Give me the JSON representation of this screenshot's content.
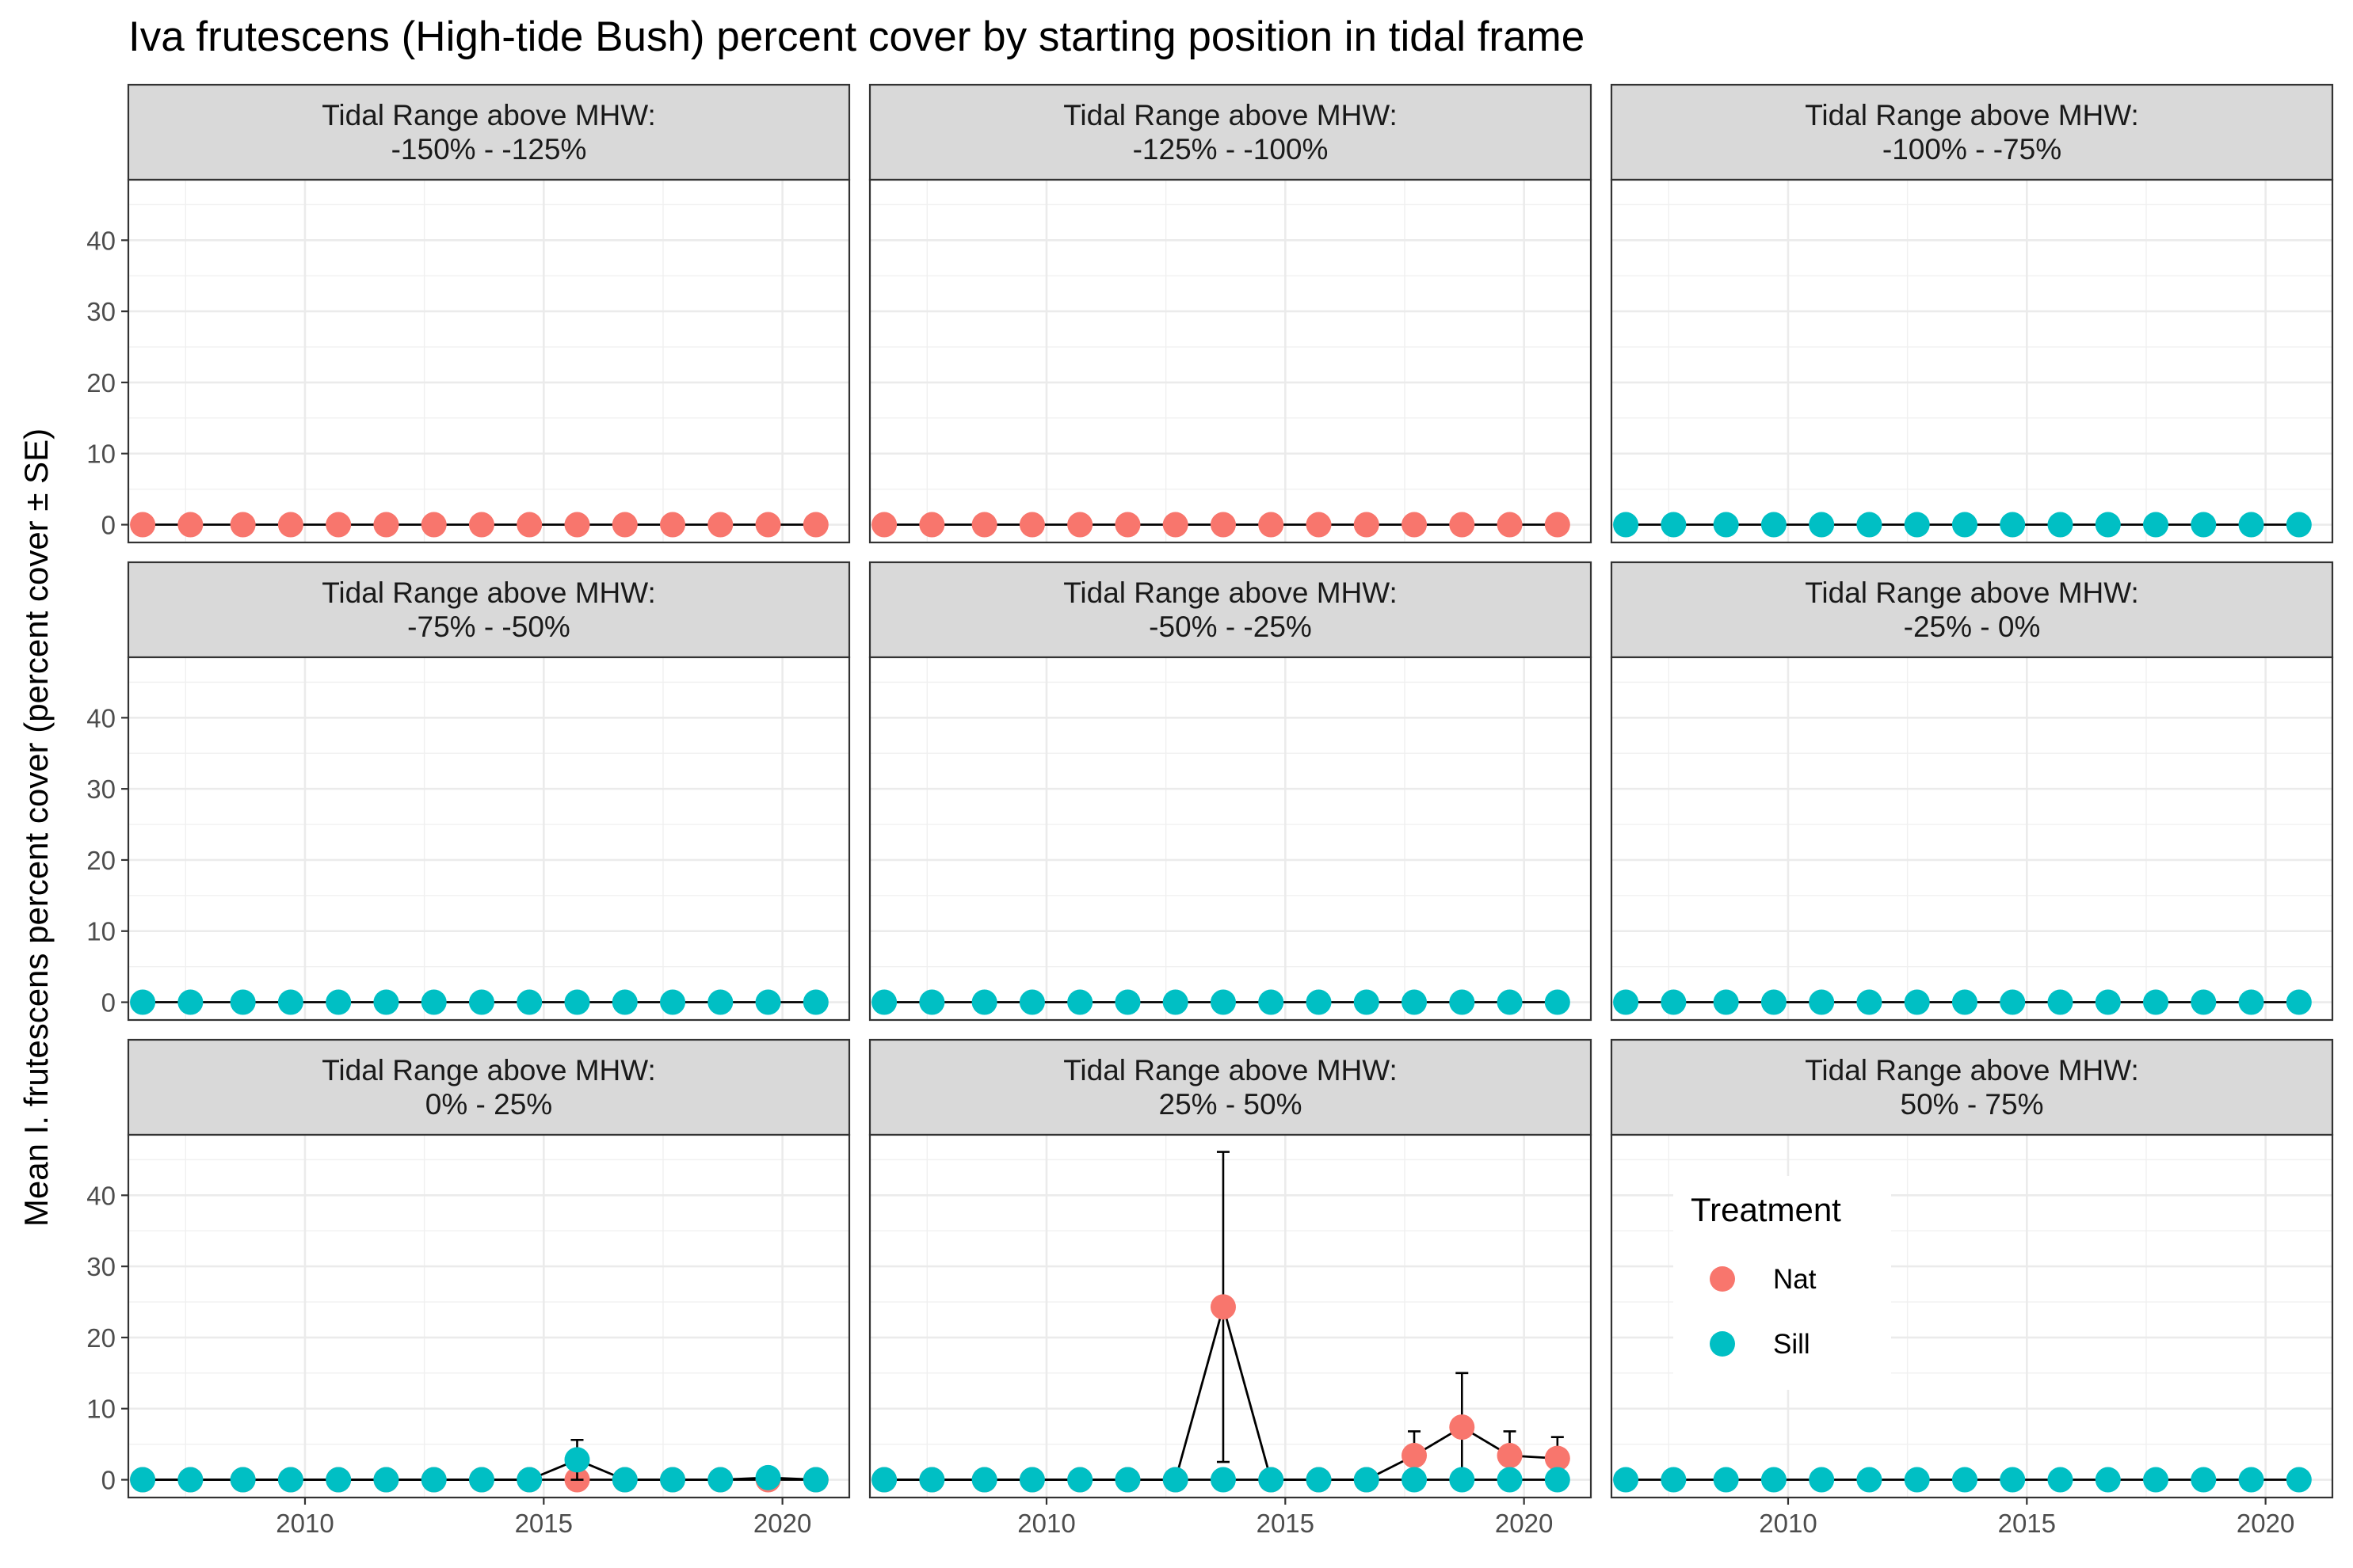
{
  "chart_data": {
    "type": "line",
    "title": "Iva frutescens (High-tide Bush) percent cover by starting position in tidal frame",
    "ylabel": "Mean I. frutescens percent cover (percent cover ± SE)",
    "xlabel": "",
    "xlim": [
      2006.3,
      2021.4
    ],
    "ylim": [
      -2.5,
      48.5
    ],
    "x_ticks": [
      2010,
      2015,
      2020
    ],
    "y_ticks": [
      0,
      10,
      20,
      30,
      40
    ],
    "grid": true,
    "legend": {
      "title": "Treatment",
      "position": "inside bottom-right panel",
      "entries": [
        {
          "name": "Nat",
          "color": "#F8766D"
        },
        {
          "name": "Sill",
          "color": "#00BFC4"
        }
      ]
    },
    "series_colors": {
      "Nat": "#F8766D",
      "Sill": "#00BFC4"
    },
    "years": [
      2006.6,
      2007.6,
      2008.7,
      2009.7,
      2010.7,
      2011.7,
      2012.7,
      2013.7,
      2014.7,
      2015.7,
      2016.7,
      2017.7,
      2018.7,
      2019.7,
      2020.7
    ],
    "facets": [
      {
        "strip_line1": "Tidal Range above MHW:",
        "strip_line2": "-150%  -  -125%",
        "series": [
          {
            "name": "Nat",
            "values": [
              0,
              0,
              0,
              0,
              0,
              0,
              0,
              0,
              0,
              0,
              0,
              0,
              0,
              0,
              0
            ],
            "se": [
              0,
              0,
              0,
              0,
              0,
              0,
              0,
              0,
              0,
              0,
              0,
              0,
              0,
              0,
              0
            ]
          }
        ]
      },
      {
        "strip_line1": "Tidal Range above MHW:",
        "strip_line2": "-125%  -  -100%",
        "series": [
          {
            "name": "Nat",
            "values": [
              0,
              0,
              0,
              0,
              0,
              0,
              0,
              0,
              0,
              0,
              0,
              0,
              0,
              0,
              0
            ],
            "se": [
              0,
              0,
              0,
              0,
              0,
              0,
              0,
              0,
              0,
              0,
              0,
              0,
              0,
              0,
              0
            ]
          }
        ]
      },
      {
        "strip_line1": "Tidal Range above MHW:",
        "strip_line2": "-100%  -  -75%",
        "series": [
          {
            "name": "Sill",
            "values": [
              0,
              0,
              0,
              0,
              0,
              0,
              0,
              0,
              0,
              0,
              0,
              0,
              0,
              0,
              0
            ],
            "se": [
              0,
              0,
              0,
              0,
              0,
              0,
              0,
              0,
              0,
              0,
              0,
              0,
              0,
              0,
              0
            ]
          }
        ]
      },
      {
        "strip_line1": "Tidal Range above MHW:",
        "strip_line2": "-75%  -  -50%",
        "series": [
          {
            "name": "Sill",
            "values": [
              0,
              0,
              0,
              0,
              0,
              0,
              0,
              0,
              0,
              0,
              0,
              0,
              0,
              0,
              0
            ],
            "se": [
              0,
              0,
              0,
              0,
              0,
              0,
              0,
              0,
              0,
              0,
              0,
              0,
              0,
              0,
              0
            ]
          }
        ]
      },
      {
        "strip_line1": "Tidal Range above MHW:",
        "strip_line2": "-50%  -  -25%",
        "series": [
          {
            "name": "Sill",
            "values": [
              0,
              0,
              0,
              0,
              0,
              0,
              0,
              0,
              0,
              0,
              0,
              0,
              0,
              0,
              0
            ],
            "se": [
              0,
              0,
              0,
              0,
              0,
              0,
              0,
              0,
              0,
              0,
              0,
              0,
              0,
              0,
              0
            ]
          }
        ]
      },
      {
        "strip_line1": "Tidal Range above MHW:",
        "strip_line2": "-25%  -  0%",
        "series": [
          {
            "name": "Sill",
            "values": [
              0,
              0,
              0,
              0,
              0,
              0,
              0,
              0,
              0,
              0,
              0,
              0,
              0,
              0,
              0
            ],
            "se": [
              0,
              0,
              0,
              0,
              0,
              0,
              0,
              0,
              0,
              0,
              0,
              0,
              0,
              0,
              0
            ]
          }
        ]
      },
      {
        "strip_line1": "Tidal Range above MHW:",
        "strip_line2": "0%  -  25%",
        "series": [
          {
            "name": "Nat",
            "values": [
              0,
              0,
              0,
              0,
              0,
              0,
              0,
              0,
              0,
              0,
              0,
              0,
              0,
              0,
              0
            ],
            "se": [
              0,
              0,
              0,
              0,
              0,
              0,
              0,
              0,
              0,
              0,
              0,
              0,
              0,
              0,
              0
            ]
          },
          {
            "name": "Sill",
            "values": [
              0,
              0,
              0,
              0,
              0,
              0,
              0,
              0,
              0,
              2.8,
              0,
              0,
              0,
              0.3,
              0
            ],
            "se": [
              0,
              0,
              0,
              0,
              0,
              0,
              0,
              0,
              0,
              2.8,
              0,
              0,
              0,
              0,
              0
            ]
          }
        ]
      },
      {
        "strip_line1": "Tidal Range above MHW:",
        "strip_line2": "25%  -  50%",
        "series": [
          {
            "name": "Nat",
            "values": [
              0,
              0,
              0,
              0,
              0,
              0,
              0,
              24.3,
              0,
              0,
              0,
              3.4,
              7.4,
              3.4,
              3
            ],
            "se": [
              0,
              0,
              0,
              0,
              0,
              0,
              0,
              21.8,
              0,
              0,
              0,
              3.4,
              7.6,
              3.4,
              3
            ]
          },
          {
            "name": "Sill",
            "values": [
              0,
              0,
              0,
              0,
              0,
              0,
              0,
              0,
              0,
              0,
              0,
              0,
              0,
              0,
              0
            ],
            "se": [
              0,
              0,
              0,
              0,
              0,
              0,
              0,
              0,
              0,
              0,
              0,
              0,
              0,
              0,
              0
            ]
          }
        ]
      },
      {
        "strip_line1": "Tidal Range above MHW:",
        "strip_line2": "50%  -  75%",
        "series": [
          {
            "name": "Sill",
            "values": [
              0,
              0,
              0,
              0,
              0,
              0,
              0,
              0,
              0,
              0,
              0,
              0,
              0,
              0,
              0
            ],
            "se": [
              0,
              0,
              0,
              0,
              0,
              0,
              0,
              0,
              0,
              0,
              0,
              0,
              0,
              0,
              0
            ]
          }
        ]
      }
    ]
  }
}
